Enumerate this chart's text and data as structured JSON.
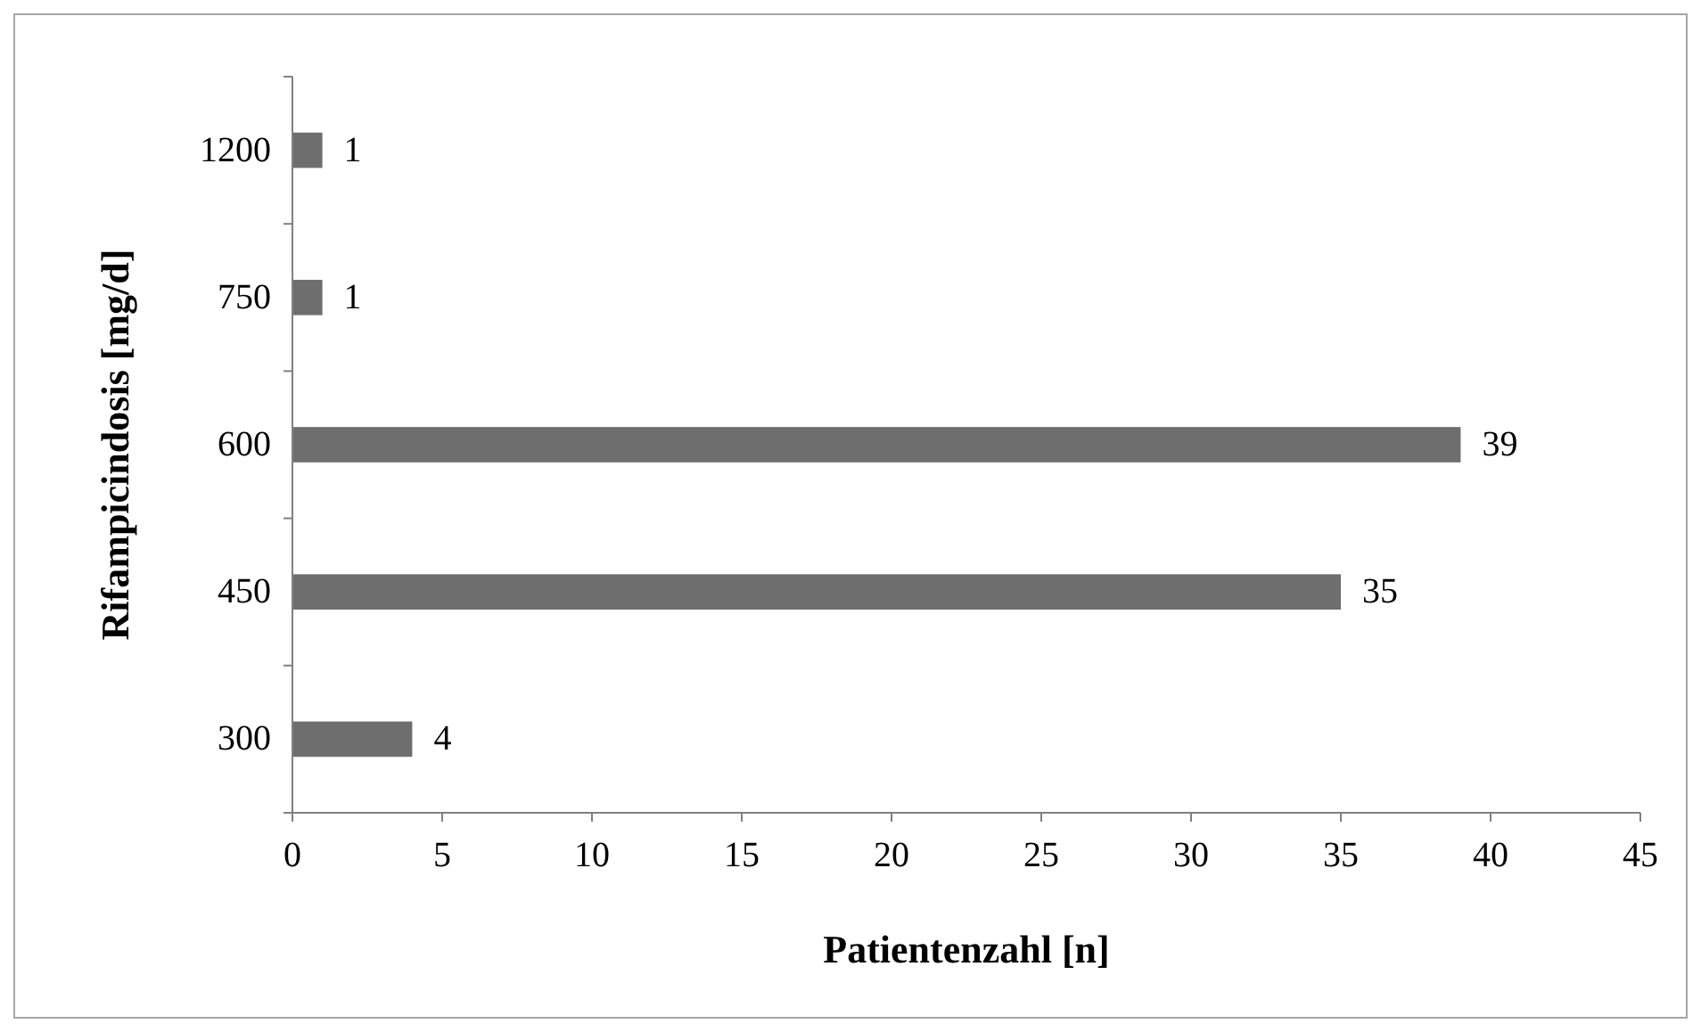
{
  "chart_data": {
    "type": "bar",
    "orientation": "horizontal",
    "categories": [
      "1200",
      "750",
      "600",
      "450",
      "300"
    ],
    "values": [
      1,
      1,
      39,
      35,
      4
    ],
    "color": "#6e6e6e",
    "xlim": [
      0,
      45
    ],
    "xticks": [
      0,
      5,
      10,
      15,
      20,
      25,
      30,
      35,
      40,
      45
    ],
    "xlabel": "Patientenzahl [n]",
    "ylabel": "Rifampicindosis [mg/d]",
    "data_labels": true,
    "grid": false
  }
}
